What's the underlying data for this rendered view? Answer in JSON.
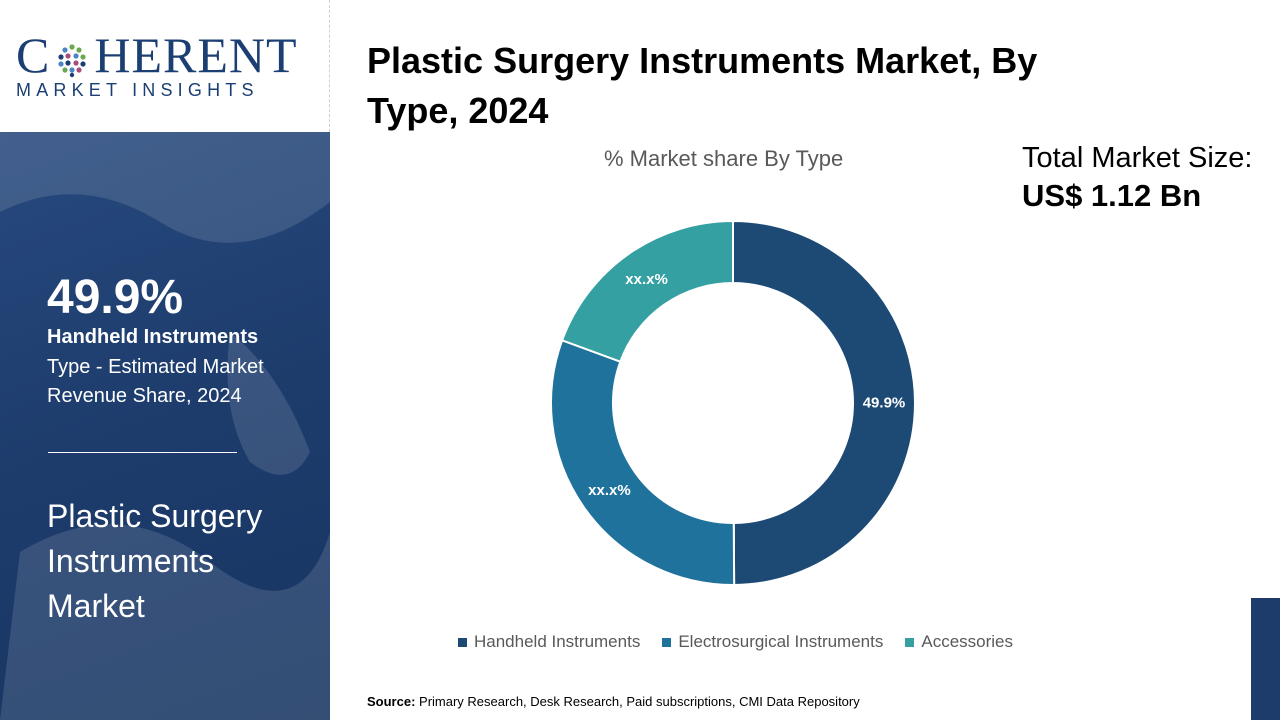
{
  "brand": {
    "logo_main_left": "C",
    "logo_main_right": "HERENT",
    "logo_sub": "MARKET INSIGHTS"
  },
  "sidebar": {
    "highlight_value": "49.9%",
    "segment_name": "Handheld Instruments",
    "segment_desc": "Type - Estimated Market Revenue Share, 2024",
    "market_name": "Plastic Surgery Instruments Market"
  },
  "header": {
    "title": "Plastic Surgery Instruments Market, By Type, 2024",
    "total_label": "Total Market Size:",
    "total_value": "US$ 1.12 Bn"
  },
  "chart_data": {
    "type": "pie",
    "variant": "donut",
    "title": "% Market share By Type",
    "categories": [
      "Handheld Instruments",
      "Electrosurgical Instruments",
      "Accessories"
    ],
    "values": [
      49.9,
      30.7,
      19.4
    ],
    "data_labels": [
      "49.9%",
      "xx.x%",
      "xx.x%"
    ],
    "colors": [
      "#1d4a74",
      "#1f729c",
      "#35a0a2"
    ],
    "legend_position": "bottom"
  },
  "footer": {
    "source_label": "Source:",
    "source_text": "Primary Research, Desk Research, Paid subscriptions, CMI Data Repository"
  }
}
